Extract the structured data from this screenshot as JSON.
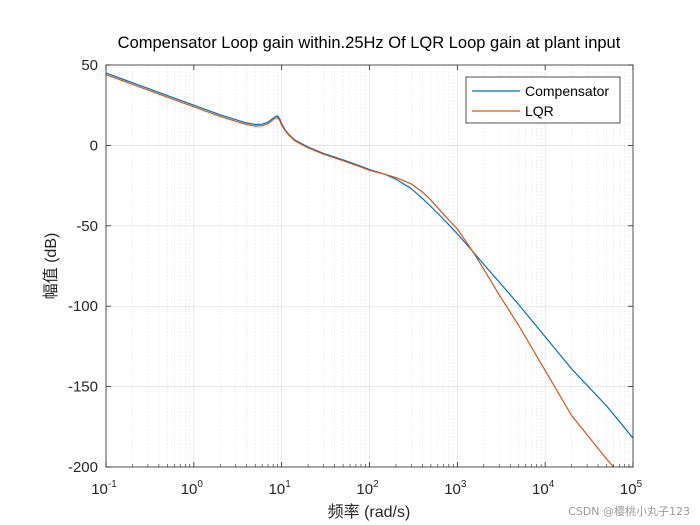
{
  "chart_data": {
    "type": "line",
    "title": "Compensator Loop gain within.25Hz Of LQR Loop gain at plant input",
    "xlabel": "频率  (rad/s)",
    "ylabel": "幅值 (dB)",
    "xscale": "log",
    "xlim": [
      0.1,
      100000
    ],
    "ylim": [
      -200,
      50
    ],
    "x_ticks": [
      {
        "base": "10",
        "exp": "-1"
      },
      {
        "base": "10",
        "exp": "0"
      },
      {
        "base": "10",
        "exp": "1"
      },
      {
        "base": "10",
        "exp": "2"
      },
      {
        "base": "10",
        "exp": "3"
      },
      {
        "base": "10",
        "exp": "4"
      },
      {
        "base": "10",
        "exp": "5"
      }
    ],
    "y_ticks": [
      "50",
      "0",
      "-50",
      "-100",
      "-150",
      "-200"
    ],
    "y_tick_values": [
      50,
      0,
      -50,
      -100,
      -150,
      -200
    ],
    "grid": true,
    "minor_grid": true,
    "legend_position": "top-right",
    "series": [
      {
        "name": "Compensator",
        "color": "#0072BD",
        "x": [
          0.1,
          0.2,
          0.5,
          1,
          2,
          3,
          4,
          5,
          6,
          7,
          8,
          8.5,
          9,
          9.5,
          10,
          11,
          12,
          14,
          17,
          20,
          30,
          50,
          80,
          100,
          150,
          200,
          300,
          400,
          500,
          700,
          1000,
          1500,
          2000,
          3000,
          5000,
          10000,
          20000,
          50000,
          100000
        ],
        "values": [
          45,
          39,
          31,
          25,
          19,
          16,
          14,
          13,
          13.2,
          14.5,
          17,
          18,
          18.2,
          16.5,
          13.5,
          9.5,
          7,
          3.5,
          1,
          -1,
          -5,
          -9,
          -13,
          -15,
          -18,
          -21,
          -27,
          -33,
          -38,
          -46,
          -55,
          -66,
          -74,
          -85,
          -99,
          -119,
          -139,
          -162,
          -182
        ]
      },
      {
        "name": "LQR",
        "color": "#D95319",
        "x": [
          0.1,
          0.2,
          0.5,
          1,
          2,
          3,
          4,
          5,
          6,
          7,
          8,
          8.5,
          9,
          9.5,
          10,
          11,
          12,
          14,
          17,
          20,
          30,
          50,
          80,
          100,
          150,
          200,
          300,
          400,
          500,
          700,
          1000,
          1500,
          2000,
          3000,
          5000,
          10000,
          20000,
          50000,
          60000
        ],
        "values": [
          44,
          38,
          30,
          24,
          18,
          15,
          13,
          12,
          12.2,
          13.5,
          16,
          17,
          17.2,
          15.5,
          12.5,
          9,
          6.5,
          3,
          0.5,
          -1.5,
          -5.5,
          -9.5,
          -13.5,
          -15.5,
          -18,
          -20,
          -24,
          -29,
          -34,
          -43,
          -52,
          -66,
          -77,
          -93,
          -112,
          -140,
          -168,
          -195,
          -200
        ]
      }
    ]
  },
  "watermark": "CSDN @樱桃小丸子123"
}
